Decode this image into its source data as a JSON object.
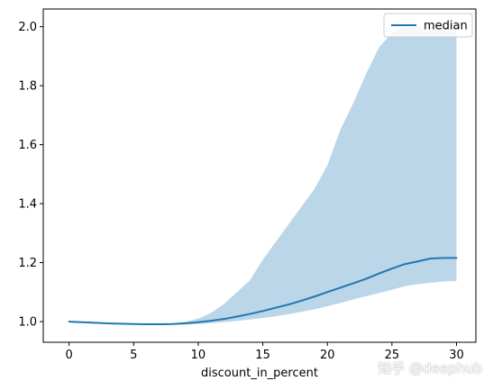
{
  "chart_data": {
    "type": "line",
    "title": "",
    "xlabel": "discount_in_percent",
    "ylabel": "",
    "xlim": [
      -2,
      31.5
    ],
    "ylim": [
      0.93,
      2.06
    ],
    "xticks": [
      0,
      5,
      10,
      15,
      20,
      25,
      30
    ],
    "xtick_labels": [
      "0",
      "5",
      "10",
      "15",
      "20",
      "25",
      "30"
    ],
    "yticks": [
      1.0,
      1.2,
      1.4,
      1.6,
      1.8,
      2.0
    ],
    "ytick_labels": [
      "1.0",
      "1.2",
      "1.4",
      "1.6",
      "1.8",
      "2.0"
    ],
    "grid": false,
    "legend_position": "top-right",
    "series": [
      {
        "name": "median",
        "color": "#1f77b4",
        "x": [
          0,
          1,
          2,
          3,
          4,
          5,
          6,
          7,
          8,
          9,
          10,
          11,
          12,
          13,
          14,
          15,
          16,
          17,
          18,
          19,
          20,
          21,
          22,
          23,
          24,
          25,
          26,
          27,
          28,
          29,
          30
        ],
        "y": [
          1.0,
          0.998,
          0.996,
          0.994,
          0.993,
          0.992,
          0.991,
          0.991,
          0.992,
          0.994,
          0.998,
          1.003,
          1.009,
          1.017,
          1.026,
          1.036,
          1.047,
          1.058,
          1.071,
          1.085,
          1.1,
          1.115,
          1.13,
          1.145,
          1.163,
          1.18,
          1.195,
          1.204,
          1.214,
          1.216,
          1.216
        ]
      }
    ],
    "band": {
      "color": "#1f77b4",
      "opacity": 0.3,
      "x": [
        0,
        1,
        2,
        3,
        4,
        5,
        6,
        7,
        8,
        9,
        10,
        11,
        12,
        13,
        14,
        15,
        16,
        17,
        18,
        19,
        20,
        21,
        22,
        23,
        24,
        25,
        26,
        27,
        28,
        29,
        30
      ],
      "lower": [
        1.0,
        0.998,
        0.995,
        0.993,
        0.991,
        0.99,
        0.989,
        0.988,
        0.989,
        0.99,
        0.992,
        0.995,
        0.998,
        1.002,
        1.007,
        1.012,
        1.018,
        1.025,
        1.033,
        1.042,
        1.052,
        1.063,
        1.075,
        1.086,
        1.097,
        1.108,
        1.12,
        1.127,
        1.132,
        1.136,
        1.138
      ],
      "upper": [
        1.0,
        0.998,
        0.996,
        0.994,
        0.993,
        0.992,
        0.991,
        0.992,
        0.994,
        1.0,
        1.01,
        1.03,
        1.06,
        1.1,
        1.14,
        1.21,
        1.27,
        1.33,
        1.39,
        1.45,
        1.53,
        1.65,
        1.74,
        1.84,
        1.93,
        1.98,
        2.0,
        2.0,
        2.0,
        2.0,
        2.0
      ]
    }
  },
  "watermark": {
    "text": "知乎 @deephub"
  }
}
